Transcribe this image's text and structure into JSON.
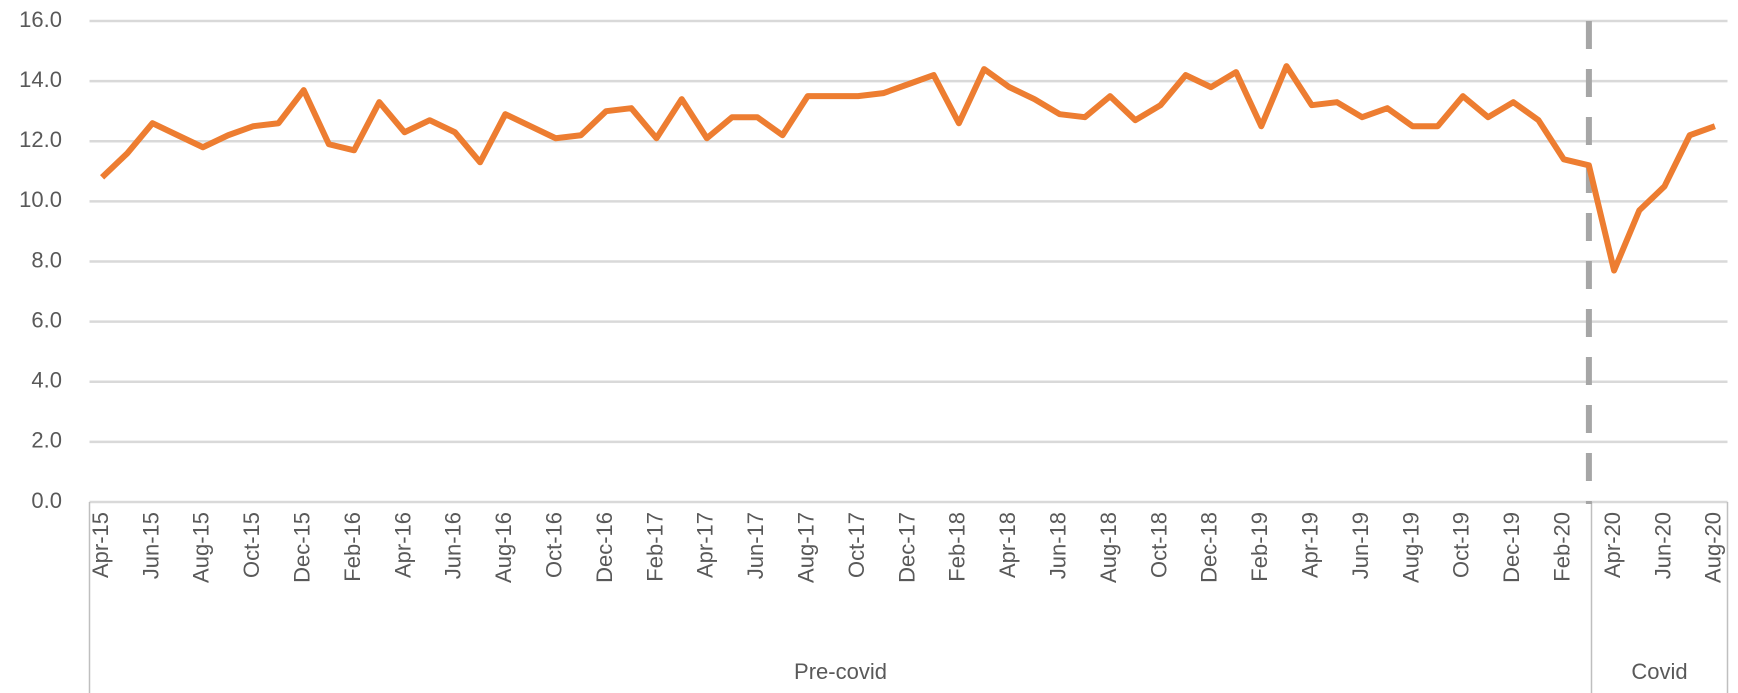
{
  "chart_data": {
    "type": "line",
    "categories": [
      "Apr-15",
      null,
      "Jun-15",
      null,
      "Aug-15",
      null,
      "Oct-15",
      null,
      "Dec-15",
      null,
      "Feb-16",
      null,
      "Apr-16",
      null,
      "Jun-16",
      null,
      "Aug-16",
      null,
      "Oct-16",
      null,
      "Dec-16",
      null,
      "Feb-17",
      null,
      "Apr-17",
      null,
      "Jun-17",
      null,
      "Aug-17",
      null,
      "Oct-17",
      null,
      "Dec-17",
      null,
      "Feb-18",
      null,
      "Apr-18",
      null,
      "Jun-18",
      null,
      "Aug-18",
      null,
      "Oct-18",
      null,
      "Dec-18",
      null,
      "Feb-19",
      null,
      "Apr-19",
      null,
      "Jun-19",
      null,
      "Aug-19",
      null,
      "Oct-19",
      null,
      "Dec-19",
      null,
      "Feb-20",
      null,
      "Apr-20",
      null,
      "Jun-20",
      null,
      "Aug-20"
    ],
    "values": [
      10.8,
      11.6,
      12.6,
      12.2,
      11.8,
      12.2,
      12.5,
      12.6,
      13.7,
      11.9,
      11.7,
      13.3,
      12.3,
      12.7,
      12.3,
      11.3,
      12.9,
      12.5,
      12.1,
      12.2,
      13.0,
      13.1,
      12.1,
      13.4,
      12.1,
      12.8,
      12.8,
      12.2,
      13.5,
      13.5,
      13.5,
      13.6,
      13.9,
      14.2,
      12.6,
      14.4,
      13.8,
      13.4,
      12.9,
      12.8,
      13.5,
      12.7,
      13.2,
      14.2,
      13.8,
      14.3,
      12.5,
      14.5,
      13.2,
      13.3,
      12.8,
      13.1,
      12.5,
      12.5,
      13.5,
      12.8,
      13.3,
      12.7,
      11.4,
      11.2,
      7.7,
      9.7,
      10.5,
      12.2,
      12.5
    ],
    "color": "#ed7d31",
    "groups": [
      "Pre-covid",
      "Covid"
    ],
    "ylim": [
      0,
      16
    ],
    "yticks": [
      {
        "value": 0,
        "label": "0.0"
      },
      {
        "value": 2,
        "label": "2.0"
      },
      {
        "value": 4,
        "label": "4.0"
      },
      {
        "value": 6,
        "label": "6.0"
      },
      {
        "value": 8,
        "label": "8.0"
      },
      {
        "value": 10,
        "label": "10.0"
      },
      {
        "value": 12,
        "label": "12.0"
      },
      {
        "value": 14,
        "label": "14.0"
      },
      {
        "value": 16,
        "label": "16.0"
      }
    ],
    "grid": true
  }
}
